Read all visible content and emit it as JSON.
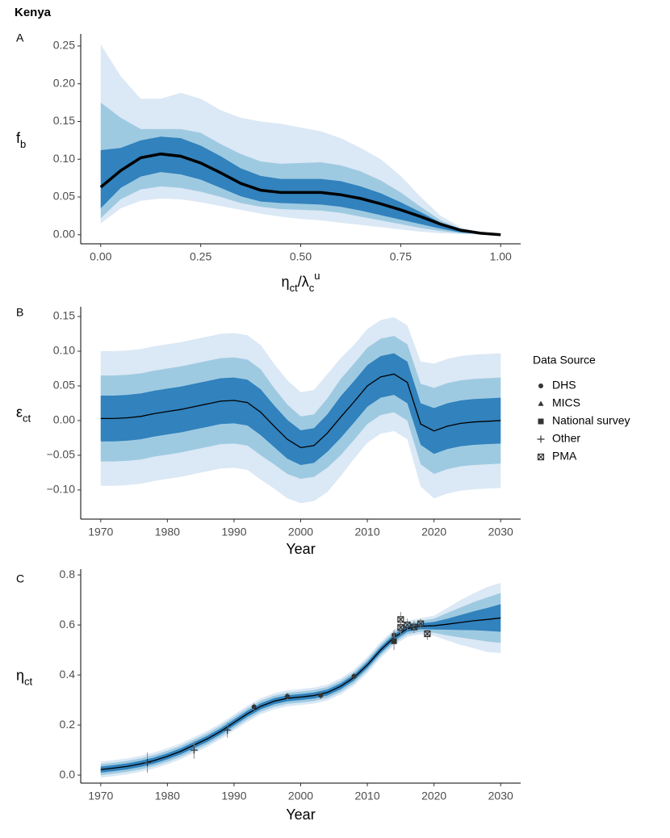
{
  "title": "Kenya",
  "chart_data": [
    {
      "type": "line",
      "panel": "A",
      "xlabel": [
        {
          "text": "η"
        },
        {
          "text": "ct",
          "sub": true
        },
        {
          "text": "/λ"
        },
        {
          "text": "c",
          "sub": true
        },
        {
          "text": "u",
          "sup": true
        }
      ],
      "ylabel": [
        {
          "text": "f"
        },
        {
          "text": "b",
          "sub": true
        }
      ],
      "x": [
        0,
        0.05,
        0.1,
        0.15,
        0.2,
        0.25,
        0.3,
        0.35,
        0.4,
        0.45,
        0.5,
        0.55,
        0.6,
        0.65,
        0.7,
        0.75,
        0.8,
        0.85,
        0.9,
        0.95,
        1
      ],
      "bands": [
        {
          "color": "#dbe8f5",
          "upper": [
            0.252,
            0.21,
            0.18,
            0.18,
            0.188,
            0.18,
            0.165,
            0.155,
            0.15,
            0.147,
            0.142,
            0.137,
            0.128,
            0.115,
            0.1,
            0.078,
            0.05,
            0.025,
            0.01,
            0.003,
            0
          ],
          "lower": [
            0.015,
            0.035,
            0.045,
            0.048,
            0.047,
            0.043,
            0.038,
            0.033,
            0.028,
            0.024,
            0.021,
            0.019,
            0.016,
            0.013,
            0.01,
            0.007,
            0.004,
            0.002,
            0.001,
            0,
            0
          ]
        },
        {
          "color": "#9ecae1",
          "upper": [
            0.175,
            0.155,
            0.14,
            0.14,
            0.14,
            0.135,
            0.12,
            0.107,
            0.097,
            0.094,
            0.095,
            0.096,
            0.092,
            0.084,
            0.072,
            0.056,
            0.037,
            0.019,
            0.008,
            0.002,
            0
          ],
          "lower": [
            0.022,
            0.047,
            0.06,
            0.064,
            0.062,
            0.057,
            0.05,
            0.042,
            0.037,
            0.034,
            0.033,
            0.032,
            0.029,
            0.024,
            0.019,
            0.014,
            0.009,
            0.005,
            0.002,
            0.001,
            0
          ]
        },
        {
          "color": "#3182bd",
          "upper": [
            0.112,
            0.115,
            0.125,
            0.13,
            0.128,
            0.118,
            0.104,
            0.088,
            0.078,
            0.074,
            0.074,
            0.074,
            0.071,
            0.064,
            0.055,
            0.043,
            0.03,
            0.016,
            0.007,
            0.002,
            0
          ],
          "lower": [
            0.035,
            0.062,
            0.077,
            0.083,
            0.08,
            0.073,
            0.062,
            0.051,
            0.044,
            0.042,
            0.041,
            0.04,
            0.037,
            0.032,
            0.026,
            0.02,
            0.014,
            0.008,
            0.003,
            0.001,
            0
          ]
        }
      ],
      "median": {
        "color": "#000000",
        "line_width": 3.5,
        "values": [
          0.063,
          0.085,
          0.102,
          0.107,
          0.104,
          0.095,
          0.082,
          0.068,
          0.059,
          0.056,
          0.056,
          0.056,
          0.053,
          0.048,
          0.041,
          0.033,
          0.024,
          0.014,
          0.006,
          0.002,
          0
        ]
      },
      "xlim": [
        -0.05,
        1.05
      ],
      "ylim": [
        -0.012,
        0.266
      ],
      "xticks": [
        {
          "value": 0,
          "label": "0.00"
        },
        {
          "value": 0.25,
          "label": "0.25"
        },
        {
          "value": 0.5,
          "label": "0.50"
        },
        {
          "value": 0.75,
          "label": "0.75"
        },
        {
          "value": 1,
          "label": "1.00"
        }
      ],
      "yticks": [
        {
          "value": 0,
          "label": "0.00"
        },
        {
          "value": 0.05,
          "label": "0.05"
        },
        {
          "value": 0.1,
          "label": "0.10"
        },
        {
          "value": 0.15,
          "label": "0.15"
        },
        {
          "value": 0.2,
          "label": "0.20"
        },
        {
          "value": 0.25,
          "label": "0.25"
        }
      ]
    },
    {
      "type": "line",
      "panel": "B",
      "xlabel": [
        {
          "text": "Year"
        }
      ],
      "ylabel": [
        {
          "text": "ε"
        },
        {
          "text": "ct",
          "sub": true
        }
      ],
      "x": [
        1970,
        1972,
        1974,
        1976,
        1978,
        1980,
        1982,
        1984,
        1986,
        1988,
        1990,
        1992,
        1994,
        1996,
        1998,
        2000,
        2002,
        2004,
        2006,
        2008,
        2010,
        2012,
        2014,
        2016,
        2018,
        2020,
        2022,
        2024,
        2026,
        2028,
        2030
      ],
      "bands": [
        {
          "color": "#dbe8f5",
          "upper": [
            0.1,
            0.1,
            0.101,
            0.103,
            0.107,
            0.11,
            0.113,
            0.117,
            0.121,
            0.125,
            0.126,
            0.123,
            0.109,
            0.082,
            0.058,
            0.041,
            0.044,
            0.067,
            0.09,
            0.109,
            0.132,
            0.145,
            0.149,
            0.137,
            0.085,
            0.082,
            0.089,
            0.093,
            0.095,
            0.096,
            0.097
          ],
          "lower": [
            -0.094,
            -0.094,
            -0.093,
            -0.091,
            -0.087,
            -0.084,
            -0.081,
            -0.077,
            -0.073,
            -0.069,
            -0.068,
            -0.071,
            -0.085,
            -0.098,
            -0.112,
            -0.119,
            -0.116,
            -0.103,
            -0.08,
            -0.055,
            -0.032,
            -0.019,
            -0.015,
            -0.027,
            -0.095,
            -0.112,
            -0.105,
            -0.101,
            -0.099,
            -0.098,
            -0.097
          ]
        },
        {
          "color": "#9ecae1",
          "upper": [
            0.065,
            0.065,
            0.066,
            0.068,
            0.072,
            0.075,
            0.078,
            0.082,
            0.086,
            0.09,
            0.091,
            0.088,
            0.074,
            0.047,
            0.023,
            0.006,
            0.009,
            0.032,
            0.06,
            0.082,
            0.105,
            0.118,
            0.122,
            0.11,
            0.053,
            0.047,
            0.054,
            0.058,
            0.06,
            0.061,
            0.062
          ],
          "lower": [
            -0.059,
            -0.059,
            -0.058,
            -0.056,
            -0.052,
            -0.049,
            -0.046,
            -0.042,
            -0.038,
            -0.034,
            -0.033,
            -0.036,
            -0.05,
            -0.063,
            -0.077,
            -0.084,
            -0.081,
            -0.068,
            -0.05,
            -0.028,
            -0.005,
            0.008,
            0.012,
            0,
            -0.063,
            -0.077,
            -0.07,
            -0.066,
            -0.064,
            -0.063,
            -0.062
          ]
        },
        {
          "color": "#3182bd",
          "upper": [
            0.036,
            0.036,
            0.037,
            0.039,
            0.043,
            0.046,
            0.049,
            0.053,
            0.057,
            0.061,
            0.062,
            0.059,
            0.045,
            0.022,
            0.001,
            -0.014,
            -0.011,
            0.009,
            0.035,
            0.057,
            0.08,
            0.093,
            0.097,
            0.085,
            0.025,
            0.018,
            0.025,
            0.029,
            0.031,
            0.032,
            0.033
          ],
          "lower": [
            -0.03,
            -0.03,
            -0.029,
            -0.027,
            -0.023,
            -0.02,
            -0.017,
            -0.013,
            -0.009,
            -0.005,
            -0.004,
            -0.007,
            -0.021,
            -0.038,
            -0.055,
            -0.064,
            -0.061,
            -0.045,
            -0.025,
            -0.003,
            0.02,
            0.033,
            0.037,
            0.025,
            -0.035,
            -0.048,
            -0.041,
            -0.037,
            -0.035,
            -0.034,
            -0.033
          ]
        }
      ],
      "median": {
        "color": "#000000",
        "line_width": 1.3,
        "values": [
          0.003,
          0.003,
          0.004,
          0.006,
          0.01,
          0.013,
          0.016,
          0.02,
          0.024,
          0.028,
          0.029,
          0.026,
          0.012,
          -0.008,
          -0.027,
          -0.039,
          -0.036,
          -0.018,
          0.005,
          0.027,
          0.05,
          0.063,
          0.067,
          0.055,
          -0.005,
          -0.015,
          -0.008,
          -0.004,
          -0.002,
          -0.001,
          0
        ]
      },
      "xlim": [
        1967,
        2033
      ],
      "ylim": [
        -0.142,
        0.164
      ],
      "xticks": [
        1970,
        1980,
        1990,
        2000,
        2010,
        2020,
        2030
      ],
      "yticks": [
        {
          "value": -0.1,
          "label": "−0.10"
        },
        {
          "value": -0.05,
          "label": "−0.05"
        },
        {
          "value": 0,
          "label": "0.00"
        },
        {
          "value": 0.05,
          "label": "0.05"
        },
        {
          "value": 0.1,
          "label": "0.10"
        },
        {
          "value": 0.15,
          "label": "0.15"
        }
      ]
    },
    {
      "type": "line",
      "panel": "C",
      "xlabel": [
        {
          "text": "Year"
        }
      ],
      "ylabel": [
        {
          "text": "η"
        },
        {
          "text": "ct",
          "sub": true
        }
      ],
      "x": [
        1970,
        1972,
        1974,
        1976,
        1978,
        1980,
        1982,
        1984,
        1986,
        1988,
        1990,
        1992,
        1994,
        1996,
        1998,
        2000,
        2002,
        2004,
        2006,
        2008,
        2010,
        2012,
        2014,
        2016,
        2018,
        2020,
        2022,
        2024,
        2026,
        2028,
        2030
      ],
      "bands": [
        {
          "color": "#dbe8f5",
          "upper": [
            0.054,
            0.06,
            0.067,
            0.077,
            0.09,
            0.107,
            0.127,
            0.152,
            0.177,
            0.207,
            0.242,
            0.277,
            0.307,
            0.327,
            0.339,
            0.344,
            0.35,
            0.362,
            0.387,
            0.422,
            0.472,
            0.532,
            0.582,
            0.617,
            0.627,
            0.637,
            0.668,
            0.7,
            0.727,
            0.752,
            0.768
          ],
          "lower": [
            -0.01,
            -0.004,
            0.003,
            0.013,
            0.026,
            0.043,
            0.063,
            0.088,
            0.113,
            0.143,
            0.178,
            0.213,
            0.243,
            0.263,
            0.275,
            0.28,
            0.286,
            0.298,
            0.323,
            0.358,
            0.408,
            0.468,
            0.518,
            0.553,
            0.563,
            0.557,
            0.538,
            0.52,
            0.507,
            0.492,
            0.488
          ]
        },
        {
          "color": "#9ecae1",
          "upper": [
            0.044,
            0.05,
            0.057,
            0.067,
            0.08,
            0.097,
            0.117,
            0.142,
            0.167,
            0.197,
            0.232,
            0.267,
            0.297,
            0.317,
            0.329,
            0.334,
            0.34,
            0.352,
            0.377,
            0.412,
            0.462,
            0.522,
            0.572,
            0.607,
            0.617,
            0.625,
            0.648,
            0.67,
            0.692,
            0.71,
            0.728
          ],
          "lower": [
            0,
            0.006,
            0.013,
            0.023,
            0.036,
            0.053,
            0.073,
            0.098,
            0.123,
            0.153,
            0.188,
            0.223,
            0.253,
            0.273,
            0.285,
            0.29,
            0.296,
            0.308,
            0.333,
            0.368,
            0.418,
            0.478,
            0.528,
            0.563,
            0.573,
            0.569,
            0.558,
            0.55,
            0.542,
            0.534,
            0.528
          ]
        },
        {
          "color": "#3182bd",
          "upper": [
            0.034,
            0.04,
            0.047,
            0.057,
            0.07,
            0.087,
            0.107,
            0.132,
            0.157,
            0.187,
            0.222,
            0.257,
            0.287,
            0.307,
            0.319,
            0.324,
            0.33,
            0.342,
            0.367,
            0.402,
            0.452,
            0.512,
            0.562,
            0.597,
            0.607,
            0.612,
            0.625,
            0.64,
            0.655,
            0.668,
            0.683
          ],
          "lower": [
            0.01,
            0.016,
            0.023,
            0.033,
            0.046,
            0.063,
            0.083,
            0.108,
            0.133,
            0.163,
            0.198,
            0.233,
            0.263,
            0.283,
            0.295,
            0.3,
            0.306,
            0.318,
            0.343,
            0.378,
            0.428,
            0.488,
            0.538,
            0.573,
            0.583,
            0.582,
            0.581,
            0.58,
            0.579,
            0.576,
            0.573
          ]
        }
      ],
      "median": {
        "color": "#000000",
        "line_width": 1.3,
        "values": [
          0.022,
          0.028,
          0.035,
          0.045,
          0.058,
          0.075,
          0.095,
          0.12,
          0.145,
          0.175,
          0.21,
          0.245,
          0.275,
          0.295,
          0.307,
          0.312,
          0.318,
          0.33,
          0.355,
          0.39,
          0.44,
          0.5,
          0.55,
          0.585,
          0.595,
          0.597,
          0.603,
          0.61,
          0.617,
          0.622,
          0.628
        ]
      },
      "legend_title": "Data Source",
      "series": [
        {
          "name": "DHS",
          "marker": "circle",
          "color": "#333333",
          "x": [
            1993,
            1998,
            2003,
            2008,
            2014
          ],
          "values": [
            0.273,
            0.315,
            0.318,
            0.395,
            0.56
          ],
          "errors": [
            0.015,
            0.015,
            0.015,
            0.015,
            0.02
          ]
        },
        {
          "name": "MICS",
          "marker": "triangle",
          "color": "#333333",
          "x": [],
          "values": [],
          "errors": []
        },
        {
          "name": "National survey",
          "marker": "square",
          "color": "#333333",
          "x": [
            2014
          ],
          "values": [
            0.535
          ],
          "errors": [
            0.035
          ]
        },
        {
          "name": "Other",
          "marker": "plus",
          "color": "#333333",
          "x": [
            1977,
            1984,
            1989
          ],
          "values": [
            0.05,
            0.1,
            0.18
          ],
          "errors": [
            0.04,
            0.035,
            0.03
          ]
        },
        {
          "name": "PMA",
          "marker": "boxed-x",
          "color": "#333333",
          "x": [
            2015,
            2015,
            2016,
            2017,
            2018,
            2019
          ],
          "values": [
            0.622,
            0.59,
            0.6,
            0.592,
            0.605,
            0.565
          ],
          "errors": [
            0.03,
            0.03,
            0.025,
            0.025,
            0.02,
            0.025
          ]
        }
      ],
      "xlim": [
        1967,
        2033
      ],
      "ylim": [
        -0.032,
        0.823
      ],
      "xticks": [
        1970,
        1980,
        1990,
        2000,
        2010,
        2020,
        2030
      ],
      "yticks": [
        {
          "value": 0,
          "label": "0.0"
        },
        {
          "value": 0.2,
          "label": "0.2"
        },
        {
          "value": 0.4,
          "label": "0.4"
        },
        {
          "value": 0.6,
          "label": "0.6"
        },
        {
          "value": 0.8,
          "label": "0.8"
        }
      ]
    }
  ]
}
